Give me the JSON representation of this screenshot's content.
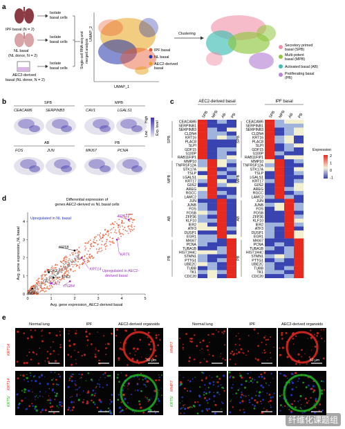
{
  "panels": {
    "a": "a",
    "b": "b",
    "c": "c",
    "d": "d",
    "e": "e"
  },
  "panel_a": {
    "ipf": "IPF basal (N = 2)",
    "nl1": "NL basal",
    "nl2": "(NL donor, N = 2)",
    "aec1": "AEC2-derived",
    "aec2": "basal (NL donor, N = 2)",
    "isolate": [
      "Isolate",
      "basal cells"
    ],
    "vertical": [
      "Single-cell RNA-seq and",
      "merged analysis"
    ],
    "umap1": "UMAP_1",
    "umap2": "UMAP_2",
    "clustering": "Clustering",
    "legend_left": [
      {
        "label": "IPF basal",
        "color": "#e8552b"
      },
      {
        "label": "NL basal",
        "color": "#2233aa"
      },
      {
        "label": "AEC2-derived basal",
        "color": "#e6a21a"
      }
    ],
    "legend_right": [
      {
        "label": "Secretory primed basal (SPB)",
        "color": "#f08fa5"
      },
      {
        "label": "Multi-potent basal (MPB)",
        "color": "#8fc63f"
      },
      {
        "label": "Activated basal (AB)",
        "color": "#3dbfb4"
      },
      {
        "label": "Proliferating basal (PB)",
        "color": "#b785d6"
      }
    ]
  },
  "panel_b": {
    "groups": [
      "SPB",
      "MPB",
      "AB",
      "PB"
    ],
    "genes": [
      "CEACAM6",
      "SERPINB3",
      "CAV1",
      "LGALS1",
      "FOS",
      "JUN",
      "MKI67",
      "PCNA"
    ],
    "scale_label": "Exp. level",
    "high": "High",
    "low": "Low"
  },
  "panel_c": {
    "title_left": "AEC2-derived basal",
    "title_right": "IPF basal",
    "columns": [
      "SPB",
      "MPB",
      "AB",
      "PB"
    ],
    "groups": [
      "SPB",
      "MPB",
      "AB",
      "PB"
    ],
    "genes": [
      "CEACAM6",
      "SERPINB1",
      "SERPINB3",
      "CLDN4",
      "KRT16",
      "PLAC8",
      "SLPI",
      "GDF15",
      "S100P",
      "RAB11FIP1",
      "MMP10",
      "TNFRSF12A",
      "STK17A",
      "TSLP",
      "LGALS1",
      "KRT17",
      "G0S2",
      "AREG",
      "RGCC",
      "LAMC2",
      "JUN",
      "JUNB",
      "FOS",
      "FOSB",
      "ZFP36",
      "KLF10",
      "IER2",
      "ATF3",
      "DUSP1",
      "EGR1",
      "MKI67",
      "PCNA",
      "TUBA1B",
      "HIST1H4C",
      "STMN1",
      "PTTG1",
      "UBE2C",
      "TUBB",
      "TK1",
      "CDC20"
    ],
    "legend_title": "Expression",
    "legend_ticks": [
      "2",
      "1",
      "0",
      "-1"
    ]
  },
  "panel_d": {
    "title1": "Differential expression of",
    "title2": "genes AEC2-derived vs NL basal cells",
    "xlabel": "Avg. gene expression_AEC2-derived basal",
    "ylabel": "Avg. gene expression_NL basal",
    "up_nl": "Upregulated in NL basal",
    "up_aec1": "Upregulated in AEC2-",
    "up_aec2": "derived basal",
    "labels": [
      "KRT17",
      "KRT8",
      "KRT5",
      "KRT14",
      "SOX2",
      "TP63",
      "NGFR",
      "MUC1",
      "ITGB4"
    ],
    "xticks": [
      "0",
      "1",
      "2",
      "3",
      "4",
      "5"
    ],
    "yticks": [
      "0",
      "1",
      "2",
      "3",
      "4"
    ]
  },
  "panel_e": {
    "cols_left": [
      "Normal lung",
      "IPF",
      "AEC2-derived organoids"
    ],
    "cols_right": [
      "Normal lung",
      "IPF",
      "AEC2-derived organoids"
    ],
    "row_left1": "KRT14",
    "row_left2a": "KRT5",
    "row_left2b": "KRT14",
    "row_right1": "MMP7",
    "row_right2a": "KRT5",
    "row_right2b": "MMP7",
    "scale": "50 μm"
  },
  "watermark": "纤维化课题组"
}
